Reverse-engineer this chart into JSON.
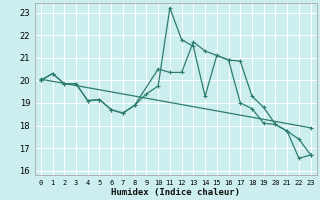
{
  "xlabel": "Humidex (Indice chaleur)",
  "bg_color": "#cceeee",
  "grid_color": "#ffffff",
  "line_color": "#2d7d6e",
  "xlim": [
    -0.5,
    23.5
  ],
  "ylim": [
    15.8,
    23.4
  ],
  "xticks": [
    0,
    1,
    2,
    3,
    4,
    5,
    6,
    7,
    8,
    9,
    10,
    11,
    12,
    13,
    14,
    15,
    16,
    17,
    18,
    19,
    20,
    21,
    22,
    23
  ],
  "yticks": [
    16,
    17,
    18,
    19,
    20,
    21,
    22,
    23
  ],
  "series1_x": [
    0,
    1,
    2,
    3,
    4,
    5,
    6,
    7,
    8,
    10,
    11,
    12,
    13,
    14,
    16,
    17,
    18,
    19,
    20,
    21,
    22,
    23
  ],
  "series1_y": [
    20.0,
    20.3,
    19.85,
    19.85,
    19.1,
    19.15,
    18.7,
    18.55,
    18.9,
    20.5,
    20.35,
    20.35,
    21.7,
    21.3,
    20.9,
    20.85,
    19.3,
    18.8,
    18.05,
    17.75,
    17.4,
    16.7
  ],
  "series2_x": [
    0,
    1,
    2,
    3,
    4,
    5,
    6,
    7,
    8,
    9,
    10,
    11,
    12,
    13,
    14,
    15,
    16,
    17,
    18,
    19,
    20,
    21,
    22,
    23
  ],
  "series2_y": [
    20.0,
    20.3,
    19.85,
    19.85,
    19.1,
    19.15,
    18.7,
    18.55,
    18.9,
    19.4,
    19.75,
    23.2,
    21.8,
    21.5,
    19.3,
    21.1,
    20.9,
    19.0,
    18.75,
    18.1,
    18.05,
    17.75,
    16.55,
    16.7
  ],
  "trend_x": [
    0,
    23
  ],
  "trend_y": [
    20.05,
    17.9
  ]
}
